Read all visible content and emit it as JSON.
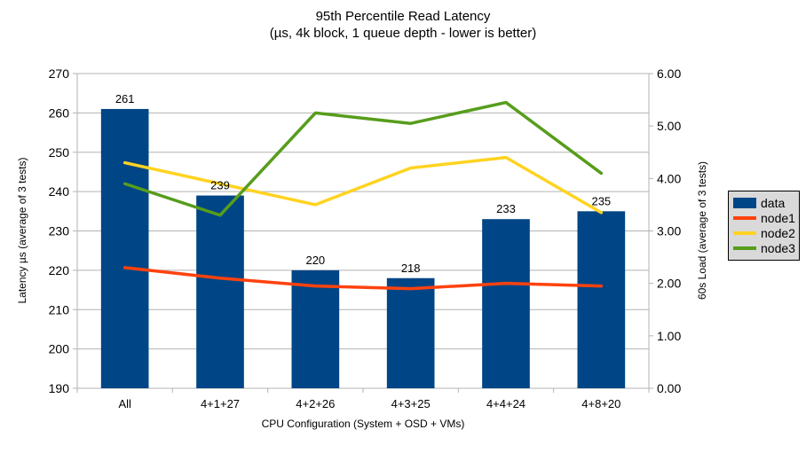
{
  "chart_data": {
    "type": "bar+line",
    "title": "95th Percentile Read Latency",
    "subtitle": "(µs, 4k block, 1 queue depth - lower is better)",
    "categories": [
      "All",
      "4+1+27",
      "4+2+26",
      "4+3+25",
      "4+4+24",
      "4+8+20"
    ],
    "series": [
      {
        "name": "data",
        "kind": "bar",
        "axis": "left",
        "color": "#004586",
        "values": [
          261,
          239,
          220,
          218,
          233,
          235
        ]
      },
      {
        "name": "node1",
        "kind": "line",
        "axis": "right",
        "color": "#ff420e",
        "values": [
          2.3,
          2.1,
          1.95,
          1.9,
          2.0,
          1.95
        ]
      },
      {
        "name": "node2",
        "kind": "line",
        "axis": "right",
        "color": "#ffd320",
        "values": [
          4.3,
          3.9,
          3.5,
          4.2,
          4.4,
          3.35
        ]
      },
      {
        "name": "node3",
        "kind": "line",
        "axis": "right",
        "color": "#579d1c",
        "values": [
          3.9,
          3.3,
          5.25,
          5.05,
          5.45,
          4.1
        ]
      }
    ],
    "bar_labels": [
      261,
      239,
      220,
      218,
      233,
      235
    ],
    "left_axis": {
      "label": "Latency µs (average of 3 tests)",
      "min": 190,
      "max": 270,
      "step": 10,
      "decimals": 0
    },
    "right_axis": {
      "label": "60s Load (average of 3 tests)",
      "min": 0,
      "max": 6,
      "step": 1,
      "decimals": 2
    },
    "x_axis": {
      "label": "CPU Configuration (System + OSD + VMs)"
    },
    "grid": true,
    "legend_position": "right",
    "legend_labels": [
      "data",
      "node1",
      "node2",
      "node3"
    ]
  },
  "colors": {
    "background": "#ffffff",
    "grid": "#b3b3b3",
    "axis": "#b3b3b3",
    "text": "#000000",
    "legend_bg": "#d9d9d9",
    "legend_border": "#000000"
  }
}
